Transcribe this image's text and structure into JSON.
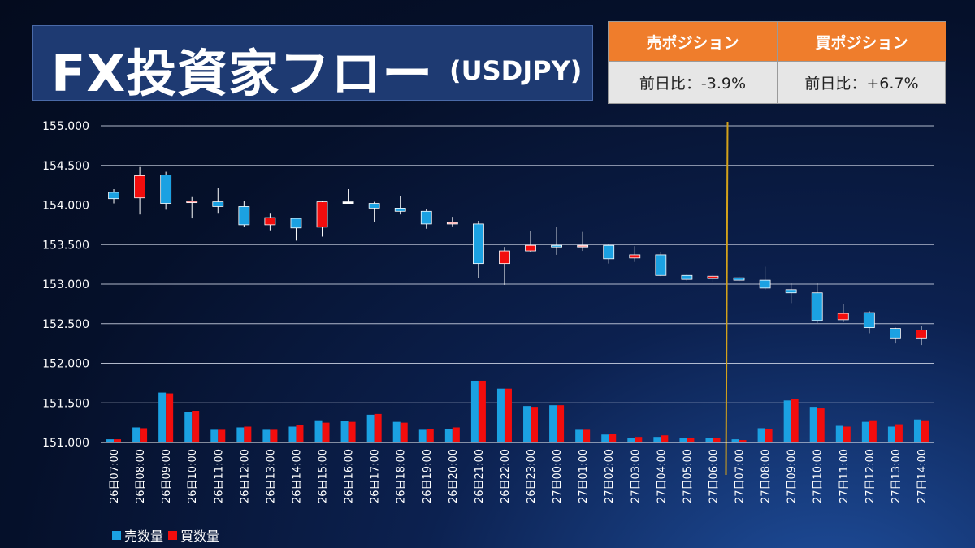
{
  "title": {
    "main": "FX投資家フロー",
    "sub": "(USDJPY)"
  },
  "positions": {
    "sell": {
      "header": "売ポジション",
      "value": "前日比：-3.9%"
    },
    "buy": {
      "header": "買ポジション",
      "value": "前日比：+6.7%"
    }
  },
  "colors": {
    "sell": "#1ba1e2",
    "buy": "#f20d0d",
    "doji": "#ff9a9a",
    "divider": "#d4a21a",
    "grid": "#cfd6e6"
  },
  "legend": {
    "sell": "売数量",
    "buy": "買数量"
  },
  "chart_data": {
    "type": "candlestick",
    "ylim": [
      151.0,
      155.0
    ],
    "yticks": [
      "151.000",
      "151.500",
      "152.000",
      "152.500",
      "153.000",
      "153.500",
      "154.000",
      "154.500",
      "155.000"
    ],
    "divider_after_index": 23,
    "categories": [
      "26日07:00",
      "26日08:00",
      "26日09:00",
      "26日10:00",
      "26日11:00",
      "26日12:00",
      "26日13:00",
      "26日14:00",
      "26日15:00",
      "26日16:00",
      "26日17:00",
      "26日18:00",
      "26日19:00",
      "26日20:00",
      "26日21:00",
      "26日22:00",
      "26日23:00",
      "27日00:00",
      "27日01:00",
      "27日02:00",
      "27日03:00",
      "27日04:00",
      "27日05:00",
      "27日06:00",
      "27日07:00",
      "27日08:00",
      "27日09:00",
      "27日10:00",
      "27日11:00",
      "27日12:00",
      "27日13:00",
      "27日14:00"
    ],
    "candles": [
      {
        "o": 154.08,
        "c": 154.16,
        "h": 154.2,
        "l": 154.02,
        "color": "sell"
      },
      {
        "o": 154.09,
        "c": 154.37,
        "h": 154.48,
        "l": 153.88,
        "color": "buy"
      },
      {
        "o": 154.38,
        "c": 154.02,
        "h": 154.42,
        "l": 153.94,
        "color": "sell"
      },
      {
        "o": 154.03,
        "c": 154.05,
        "h": 154.1,
        "l": 153.83,
        "color": "doji"
      },
      {
        "o": 154.04,
        "c": 153.98,
        "h": 154.22,
        "l": 153.9,
        "color": "sell"
      },
      {
        "o": 153.98,
        "c": 153.75,
        "h": 154.05,
        "l": 153.72,
        "color": "sell"
      },
      {
        "o": 153.75,
        "c": 153.84,
        "h": 153.9,
        "l": 153.68,
        "color": "buy"
      },
      {
        "o": 153.83,
        "c": 153.71,
        "h": 153.83,
        "l": 153.55,
        "color": "sell"
      },
      {
        "o": 153.72,
        "c": 154.04,
        "h": 154.05,
        "l": 153.6,
        "color": "buy"
      },
      {
        "o": 154.04,
        "c": 154.04,
        "h": 154.2,
        "l": 154.02,
        "color": "white"
      },
      {
        "o": 154.02,
        "c": 153.96,
        "h": 154.04,
        "l": 153.79,
        "color": "sell"
      },
      {
        "o": 153.96,
        "c": 153.92,
        "h": 154.11,
        "l": 153.88,
        "color": "sell"
      },
      {
        "o": 153.92,
        "c": 153.76,
        "h": 153.95,
        "l": 153.7,
        "color": "sell"
      },
      {
        "o": 153.76,
        "c": 153.78,
        "h": 153.85,
        "l": 153.73,
        "color": "doji"
      },
      {
        "o": 153.76,
        "c": 153.26,
        "h": 153.8,
        "l": 153.08,
        "color": "sell"
      },
      {
        "o": 153.26,
        "c": 153.42,
        "h": 153.47,
        "l": 152.99,
        "color": "buy"
      },
      {
        "o": 153.42,
        "c": 153.49,
        "h": 153.67,
        "l": 153.4,
        "color": "buy"
      },
      {
        "o": 153.49,
        "c": 153.47,
        "h": 153.72,
        "l": 153.37,
        "color": "sell"
      },
      {
        "o": 153.47,
        "c": 153.49,
        "h": 153.66,
        "l": 153.42,
        "color": "doji"
      },
      {
        "o": 153.49,
        "c": 153.32,
        "h": 153.5,
        "l": 153.26,
        "color": "sell"
      },
      {
        "o": 153.33,
        "c": 153.37,
        "h": 153.48,
        "l": 153.28,
        "color": "buy"
      },
      {
        "o": 153.37,
        "c": 153.11,
        "h": 153.4,
        "l": 153.1,
        "color": "sell"
      },
      {
        "o": 153.11,
        "c": 153.06,
        "h": 153.12,
        "l": 153.04,
        "color": "sell"
      },
      {
        "o": 153.07,
        "c": 153.1,
        "h": 153.13,
        "l": 153.03,
        "color": "buy"
      },
      {
        "o": 153.08,
        "c": 153.05,
        "h": 153.1,
        "l": 153.03,
        "color": "sell"
      },
      {
        "o": 153.05,
        "c": 152.95,
        "h": 153.22,
        "l": 152.93,
        "color": "sell"
      },
      {
        "o": 152.93,
        "c": 152.89,
        "h": 153.01,
        "l": 152.76,
        "color": "sell"
      },
      {
        "o": 152.89,
        "c": 152.54,
        "h": 153.01,
        "l": 152.51,
        "color": "sell"
      },
      {
        "o": 152.55,
        "c": 152.63,
        "h": 152.75,
        "l": 152.52,
        "color": "buy"
      },
      {
        "o": 152.64,
        "c": 152.45,
        "h": 152.66,
        "l": 152.38,
        "color": "sell"
      },
      {
        "o": 152.44,
        "c": 152.32,
        "h": 152.45,
        "l": 152.25,
        "color": "sell"
      },
      {
        "o": 152.32,
        "c": 152.42,
        "h": 152.47,
        "l": 152.23,
        "color": "buy"
      }
    ],
    "volume_series": [
      {
        "name": "売数量",
        "color": "sell",
        "values": [
          151.04,
          151.19,
          151.63,
          151.38,
          151.16,
          151.19,
          151.16,
          151.2,
          151.28,
          151.27,
          151.35,
          151.26,
          151.16,
          151.17,
          151.78,
          151.68,
          151.46,
          151.47,
          151.16,
          151.1,
          151.06,
          151.07,
          151.06,
          151.06,
          151.04,
          151.18,
          151.53,
          151.45,
          151.21,
          151.26,
          151.2,
          151.29
        ]
      },
      {
        "name": "買数量",
        "color": "buy",
        "values": [
          151.04,
          151.18,
          151.62,
          151.4,
          151.16,
          151.2,
          151.16,
          151.22,
          151.25,
          151.26,
          151.36,
          151.25,
          151.17,
          151.19,
          151.78,
          151.68,
          151.45,
          151.47,
          151.16,
          151.11,
          151.07,
          151.09,
          151.06,
          151.06,
          151.03,
          151.17,
          151.55,
          151.43,
          151.2,
          151.28,
          151.23,
          151.28
        ]
      }
    ]
  }
}
